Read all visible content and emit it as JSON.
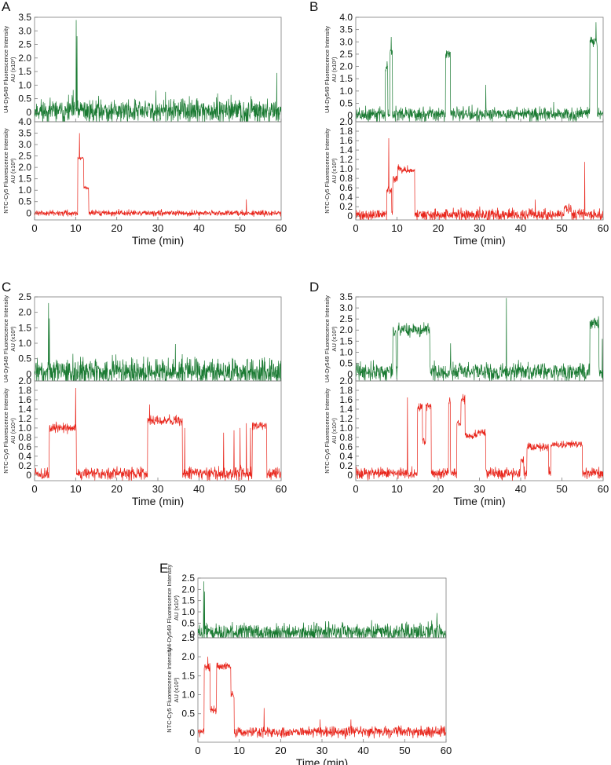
{
  "panels": [
    {
      "letter": "A",
      "xlabel": "Time (min)",
      "xlim": [
        0,
        60
      ],
      "xticks": [
        0,
        10,
        20,
        30,
        40,
        50,
        60
      ],
      "top": {
        "ylabel": [
          "U4-Dy549 Fluorescence Intensity",
          "AU (x10³)"
        ],
        "ylim": [
          -0.35,
          3.5
        ],
        "yticks": [
          0,
          0.5,
          1.0,
          1.5,
          2.0,
          2.5,
          3.0,
          3.5
        ],
        "color": "#1a7a32",
        "baseline": 0.05,
        "noise": 0.22,
        "seed": 11,
        "segments": [],
        "spikes": [
          [
            10.1,
            3.4
          ],
          [
            10.3,
            2.8
          ],
          [
            58.9,
            1.45
          ],
          [
            29.5,
            0.8
          ]
        ]
      },
      "bottom": {
        "ylabel": [
          "NTC-Cy5 Fluorescence Intensity",
          "AU (x10³)"
        ],
        "ylim": [
          -0.3,
          4.0
        ],
        "yticks": [
          0,
          0.5,
          1.0,
          1.5,
          2.0,
          2.5,
          3.0,
          3.5,
          4.0
        ],
        "color": "#e8251b",
        "baseline": 0.0,
        "noise": 0.06,
        "seed": 12,
        "segments": [
          [
            10.5,
            12.0,
            2.4
          ],
          [
            12.0,
            13.2,
            1.1
          ]
        ],
        "spikes": [
          [
            10.9,
            3.5
          ],
          [
            51.5,
            0.6
          ]
        ]
      }
    },
    {
      "letter": "B",
      "xlabel": "Time (min)",
      "xlim": [
        0,
        60
      ],
      "xticks": [
        0,
        10,
        20,
        30,
        40,
        50,
        60
      ],
      "top": {
        "ylabel": [
          "U4-Dy549 Fluorescence Intensity",
          "AU (x10³)"
        ],
        "ylim": [
          -0.25,
          4.0
        ],
        "yticks": [
          0,
          0.5,
          1.0,
          1.5,
          2.0,
          2.5,
          3.0,
          3.5,
          4.0
        ],
        "color": "#1a7a32",
        "baseline": 0.05,
        "noise": 0.14,
        "seed": 21,
        "segments": [
          [
            7.2,
            7.8,
            2.0
          ],
          [
            8.3,
            8.9,
            2.6
          ],
          [
            21.8,
            23.0,
            2.5
          ],
          [
            56.8,
            58.6,
            3.0
          ]
        ],
        "spikes": [
          [
            8.6,
            3.2
          ],
          [
            31.5,
            1.25
          ],
          [
            58.3,
            3.8
          ],
          [
            48.0,
            0.55
          ]
        ]
      },
      "bottom": {
        "ylabel": [
          "NTC-Cy5 Fluorescence Intensity",
          "AU (x10³)"
        ],
        "ylim": [
          -0.08,
          2.0
        ],
        "yticks": [
          0,
          0.2,
          0.4,
          0.6,
          0.8,
          1.0,
          1.2,
          1.4,
          1.6,
          1.8,
          2.0
        ],
        "color": "#e8251b",
        "baseline": 0.03,
        "noise": 0.06,
        "seed": 22,
        "segments": [
          [
            7.5,
            8.7,
            0.55
          ],
          [
            9.0,
            10.2,
            0.8
          ],
          [
            10.2,
            14.3,
            0.98
          ],
          [
            50.5,
            52.3,
            0.16
          ]
        ],
        "spikes": [
          [
            8.0,
            1.65
          ],
          [
            55.5,
            1.15
          ],
          [
            43.5,
            0.35
          ]
        ]
      }
    },
    {
      "letter": "C",
      "xlabel": "Time (min)",
      "xlim": [
        0,
        60
      ],
      "xticks": [
        0,
        10,
        20,
        30,
        40,
        50,
        60
      ],
      "top": {
        "ylabel": [
          "U4-Dy549 Fluorescence Intensity",
          "AU (x10³)"
        ],
        "ylim": [
          -0.22,
          2.5
        ],
        "yticks": [
          0,
          0.5,
          1.0,
          1.5,
          2.0,
          2.5
        ],
        "color": "#1a7a32",
        "baseline": 0.07,
        "noise": 0.22,
        "seed": 31,
        "segments": [],
        "spikes": [
          [
            3.4,
            2.3
          ],
          [
            3.6,
            1.8
          ]
        ]
      },
      "bottom": {
        "ylabel": [
          "NTC-Cy5 Fluorescence Intensity",
          "AU (x10⁴)"
        ],
        "ylim": [
          -0.12,
          2.0
        ],
        "yticks": [
          0,
          0.2,
          0.4,
          0.6,
          0.8,
          1.0,
          1.2,
          1.4,
          1.6,
          1.8,
          2.0
        ],
        "color": "#e8251b",
        "baseline": 0.03,
        "noise": 0.07,
        "seed": 32,
        "segments": [
          [
            3.6,
            10.2,
            1.0
          ],
          [
            27.5,
            36.0,
            1.15
          ],
          [
            53.0,
            56.5,
            1.05
          ]
        ],
        "spikes": [
          [
            10.0,
            1.85
          ],
          [
            36.5,
            1.0
          ],
          [
            46.0,
            0.9
          ],
          [
            48.5,
            0.95
          ],
          [
            50.0,
            1.0
          ],
          [
            51.5,
            1.1
          ],
          [
            52.5,
            1.0
          ],
          [
            28.0,
            1.5
          ]
        ]
      }
    },
    {
      "letter": "D",
      "xlabel": "Time (min)",
      "xlim": [
        0,
        60
      ],
      "xticks": [
        0,
        10,
        20,
        30,
        40,
        50,
        60
      ],
      "top": {
        "ylabel": [
          "U4-Dy549 Fluorescence Intensity",
          "AU (x10³)"
        ],
        "ylim": [
          -0.3,
          3.5
        ],
        "yticks": [
          0,
          0.5,
          1.0,
          1.5,
          2.0,
          2.5,
          3.0,
          3.5
        ],
        "color": "#1a7a32",
        "baseline": 0.1,
        "noise": 0.2,
        "seed": 41,
        "segments": [
          [
            9.0,
            9.8,
            1.9
          ],
          [
            10.2,
            18.0,
            2.0
          ],
          [
            56.8,
            59.0,
            2.3
          ]
        ],
        "spikes": [
          [
            36.5,
            3.45
          ],
          [
            23.0,
            1.4
          ],
          [
            59.8,
            1.6
          ]
        ]
      },
      "bottom": {
        "ylabel": [
          "NTC-Cy5 Fluorescence Intensity",
          "AU (x10⁴)"
        ],
        "ylim": [
          -0.12,
          2.0
        ],
        "yticks": [
          0,
          0.2,
          0.4,
          0.6,
          0.8,
          1.0,
          1.2,
          1.4,
          1.6,
          1.8,
          2.0
        ],
        "color": "#e8251b",
        "baseline": 0.03,
        "noise": 0.06,
        "seed": 42,
        "segments": [
          [
            15.0,
            16.2,
            1.45
          ],
          [
            16.2,
            17.0,
            0.72
          ],
          [
            17.0,
            18.3,
            1.45
          ],
          [
            22.5,
            23.0,
            1.55
          ],
          [
            24.5,
            25.5,
            1.1
          ],
          [
            25.5,
            26.5,
            1.6
          ],
          [
            26.5,
            29.0,
            0.82
          ],
          [
            29.0,
            31.5,
            0.9
          ],
          [
            40.0,
            40.8,
            0.3
          ],
          [
            41.5,
            46.8,
            0.6
          ],
          [
            47.3,
            55.0,
            0.65
          ]
        ],
        "spikes": [
          [
            12.5,
            1.65
          ],
          [
            22.8,
            1.65
          ],
          [
            26.0,
            1.72
          ]
        ]
      }
    },
    {
      "letter": "E",
      "xlabel": "Time (min)",
      "xlim": [
        0,
        60
      ],
      "xticks": [
        0,
        10,
        20,
        30,
        40,
        50,
        60
      ],
      "top": {
        "ylabel": [
          "U4-Dy549 Fluorescence Intensity",
          "AU (x10³)"
        ],
        "ylim": [
          -0.15,
          2.5
        ],
        "yticks": [
          0,
          0.5,
          1.0,
          1.5,
          2.0,
          2.5
        ],
        "color": "#1a7a32",
        "baseline": 0.08,
        "noise": 0.2,
        "seed": 51,
        "segments": [],
        "spikes": [
          [
            1.4,
            2.35
          ],
          [
            1.6,
            1.9
          ],
          [
            57.8,
            0.95
          ]
        ]
      },
      "bottom": {
        "ylabel": [
          "NTC-Cy5 Fluorescence Intensity",
          "AU (x10³)"
        ],
        "ylim": [
          -0.25,
          2.5
        ],
        "yticks": [
          0,
          0.5,
          1.0,
          1.5,
          2.0,
          2.5
        ],
        "color": "#e8251b",
        "baseline": 0.02,
        "noise": 0.07,
        "seed": 52,
        "segments": [
          [
            1.5,
            3.0,
            1.75
          ],
          [
            3.0,
            4.5,
            0.6
          ],
          [
            4.5,
            8.0,
            1.75
          ],
          [
            8.0,
            8.8,
            1.0
          ]
        ],
        "spikes": [
          [
            2.4,
            2.0
          ],
          [
            16.0,
            0.65
          ],
          [
            29.5,
            0.35
          ],
          [
            37.0,
            0.35
          ]
        ]
      }
    }
  ]
}
